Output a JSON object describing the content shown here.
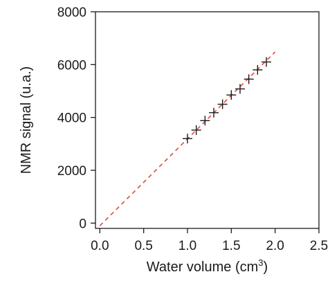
{
  "chart_data": {
    "type": "scatter",
    "xlabel": "Water volume (cm",
    "xlabel_superscript": "3",
    "xlabel_suffix": ")",
    "ylabel": "NMR signal (u.a.)",
    "xlim": [
      -0.05,
      2.5
    ],
    "ylim": [
      -200,
      8000
    ],
    "x_ticks": [
      0.0,
      0.5,
      1.0,
      1.5,
      2.0,
      2.5
    ],
    "x_tick_labels": [
      "0.0",
      "0.5",
      "1.0",
      "1.5",
      "2.0",
      "2.5"
    ],
    "y_ticks": [
      0,
      2000,
      4000,
      6000,
      8000
    ],
    "y_tick_labels": [
      "0",
      "2000",
      "4000",
      "6000",
      "8000"
    ],
    "grid": false,
    "series": [
      {
        "marker": "plus",
        "color": "#1a1a1a",
        "points": [
          {
            "x": 1.0,
            "y": 3200
          },
          {
            "x": 1.1,
            "y": 3520
          },
          {
            "x": 1.2,
            "y": 3880
          },
          {
            "x": 1.3,
            "y": 4180
          },
          {
            "x": 1.4,
            "y": 4500
          },
          {
            "x": 1.5,
            "y": 4850
          },
          {
            "x": 1.6,
            "y": 5080
          },
          {
            "x": 1.7,
            "y": 5450
          },
          {
            "x": 1.8,
            "y": 5800
          },
          {
            "x": 1.9,
            "y": 6100
          }
        ]
      }
    ],
    "fit_line": {
      "style": "dashed",
      "color": "#e8433c",
      "x": [
        0.0,
        2.0
      ],
      "y": [
        -100,
        6480
      ]
    }
  }
}
